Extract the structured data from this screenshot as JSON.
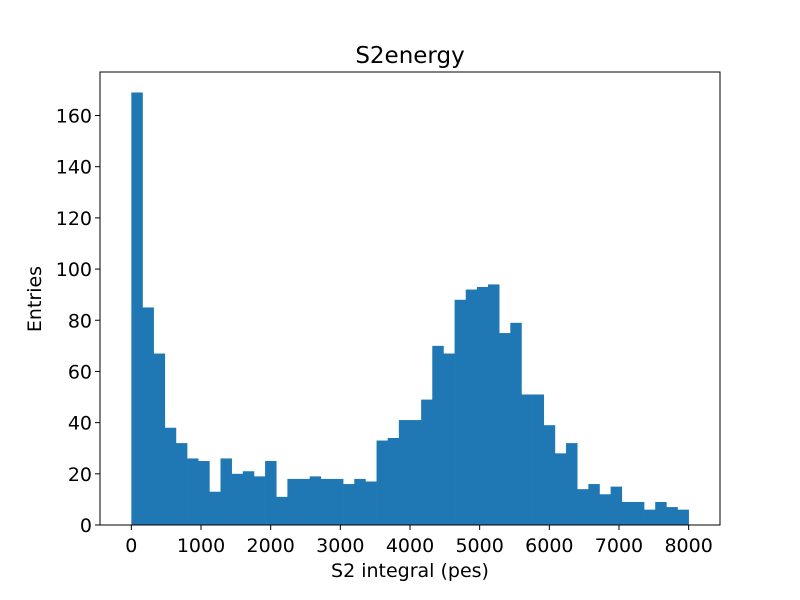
{
  "chart_data": {
    "type": "bar",
    "title": "S2energy",
    "xlabel": "S2 integral (pes)",
    "ylabel": "Entries",
    "xlim": [
      -450,
      8450
    ],
    "ylim": [
      0,
      177
    ],
    "xticks": [
      0,
      1000,
      2000,
      3000,
      4000,
      5000,
      6000,
      7000,
      8000
    ],
    "yticks": [
      0,
      20,
      40,
      60,
      80,
      100,
      120,
      140,
      160
    ],
    "grid": false,
    "bin_edges": [
      0,
      160,
      320,
      480,
      640,
      800,
      960,
      1120,
      1280,
      1440,
      1600,
      1760,
      1920,
      2080,
      2240,
      2400,
      2560,
      2720,
      2880,
      3040,
      3200,
      3360,
      3520,
      3680,
      3840,
      4000,
      4160,
      4320,
      4480,
      4640,
      4800,
      4960,
      5120,
      5280,
      5440,
      5600,
      5760,
      5920,
      6080,
      6240,
      6400,
      6560,
      6720,
      6880,
      7040,
      7200,
      7360,
      7520,
      7680,
      7840,
      8000
    ],
    "values": [
      169,
      85,
      67,
      38,
      32,
      26,
      25,
      13,
      26,
      20,
      21,
      19,
      25,
      11,
      18,
      18,
      19,
      18,
      18,
      16,
      18,
      17,
      33,
      34,
      41,
      41,
      49,
      70,
      67,
      88,
      92,
      93,
      94,
      75,
      79,
      51,
      51,
      39,
      28,
      32,
      14,
      16,
      12,
      15,
      9,
      9,
      6,
      9,
      7,
      6
    ],
    "bar_color": "#1f77b4"
  }
}
